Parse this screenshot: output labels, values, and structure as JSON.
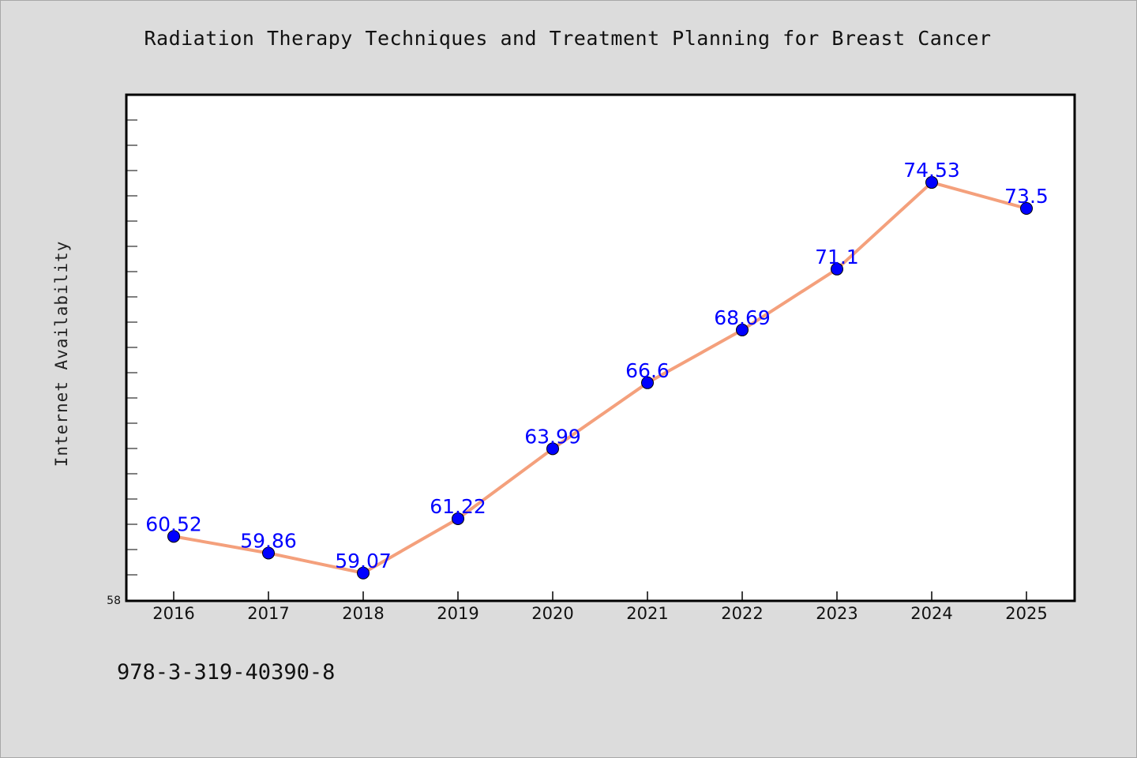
{
  "chart_data": {
    "type": "line",
    "title": "Radiation Therapy Techniques and Treatment Planning for Breast Cancer",
    "xlabel": "",
    "ylabel": "Internet Availability",
    "categories": [
      "2016",
      "2017",
      "2018",
      "2019",
      "2020",
      "2021",
      "2022",
      "2023",
      "2024",
      "2025"
    ],
    "series": [
      {
        "values": [
          60.52,
          59.86,
          59.07,
          61.22,
          63.99,
          66.6,
          68.69,
          71.1,
          74.53,
          73.5
        ],
        "data_labels": [
          "60.52",
          "59.86",
          "59.07",
          "61.22",
          "63.99",
          "66.6",
          "68.69",
          "71.1",
          "74.53",
          "73.5"
        ],
        "line_color": "#f4a07c",
        "marker_color": "#0000ff"
      }
    ],
    "ylim": [
      58,
      78
    ],
    "y_tick_labels": [
      "58"
    ],
    "grid": false,
    "legend": "none"
  },
  "footer": {
    "code": "978-3-319-40390-8"
  },
  "colors": {
    "background": "#dcdcdc",
    "plot_background": "#ffffff",
    "line": "#f4a07c",
    "marker": "#0000ff",
    "data_label": "#0000ff"
  }
}
